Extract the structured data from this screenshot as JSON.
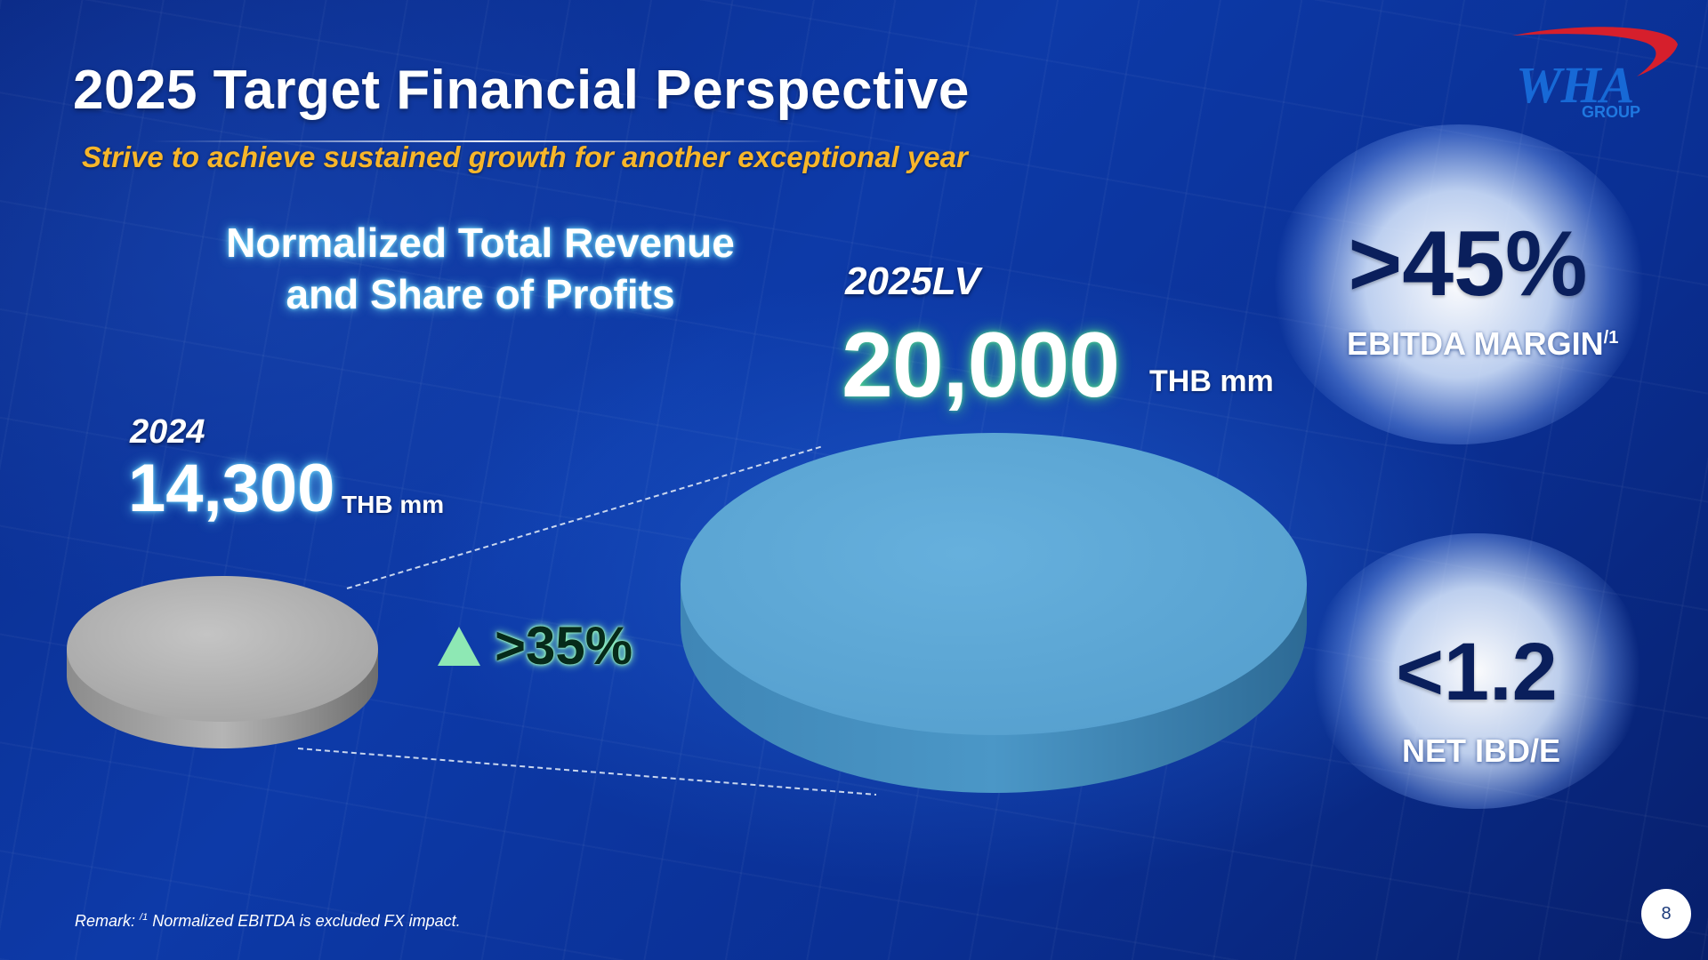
{
  "header": {
    "title": "2025 Target Financial Perspective",
    "subtitle": "Strive to achieve sustained growth for another exceptional year"
  },
  "logo": {
    "brand": "WHA",
    "group": "GROUP",
    "colors": {
      "brand": "#1769d6",
      "swoosh": "#d61f2c"
    }
  },
  "revenue": {
    "heading_line1": "Normalized Total Revenue",
    "heading_line2": "and Share of Profits",
    "year_2024": {
      "label": "2024",
      "value": "14,300",
      "unit": "THB mm",
      "disc_color": "#a9a9a9"
    },
    "year_2025": {
      "label": "2025LV",
      "value": "20,000",
      "unit": "THB mm",
      "disc_color": "#5ca7d5"
    },
    "growth": {
      "text": ">35%",
      "arrow_color": "#8ee8b4"
    }
  },
  "kpis": {
    "ebitda": {
      "value": ">45%",
      "label": "EBITDA MARGIN",
      "footnote": "/1"
    },
    "net_ibd": {
      "value": "<1.2",
      "label": "NET IBD/E"
    }
  },
  "footer": {
    "remark_prefix": "Remark: ",
    "remark_footnote": "/1",
    "remark_text": " Normalized EBITDA is excluded FX impact.",
    "page_number": "8"
  }
}
